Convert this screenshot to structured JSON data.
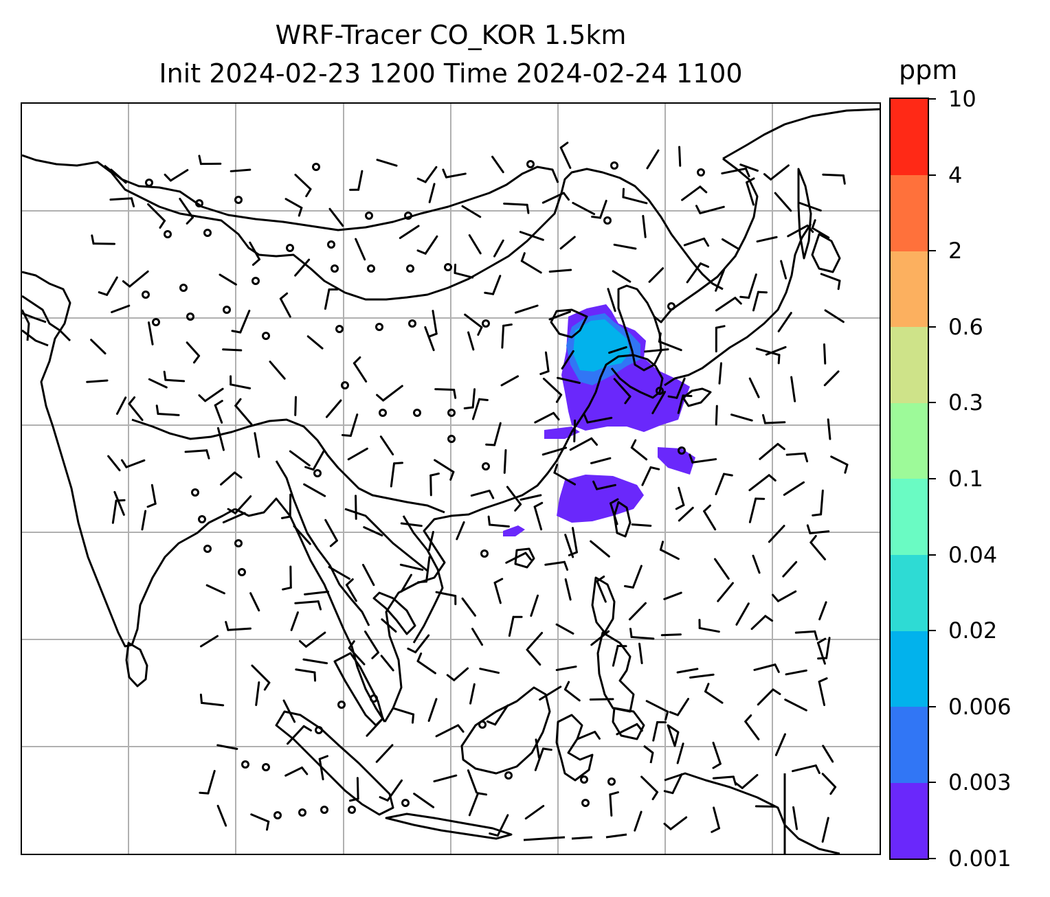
{
  "title_line1": "WRF-Tracer CO_KOR 1.5km",
  "title_line2": "Init 2024-02-23 1200 Time 2024-02-24 1100",
  "colorbar": {
    "unit": "ppm",
    "levels": [
      "0.001",
      "0.003",
      "0.006",
      "0.02",
      "0.04",
      "0.1",
      "0.3",
      "0.6",
      "2",
      "4",
      "10"
    ],
    "colors": [
      "#6a28fb",
      "#3176f5",
      "#02b2ec",
      "#2edbd4",
      "#6afbc3",
      "#9dfa99",
      "#cee389",
      "#fcb05f",
      "#ff713b",
      "#ff2916"
    ]
  },
  "map": {
    "gridlines": true,
    "wind_barbs": true,
    "tracer_field": "CO_KOR",
    "coast_color": "#000000",
    "grid_color": "#b0b0b0"
  }
}
